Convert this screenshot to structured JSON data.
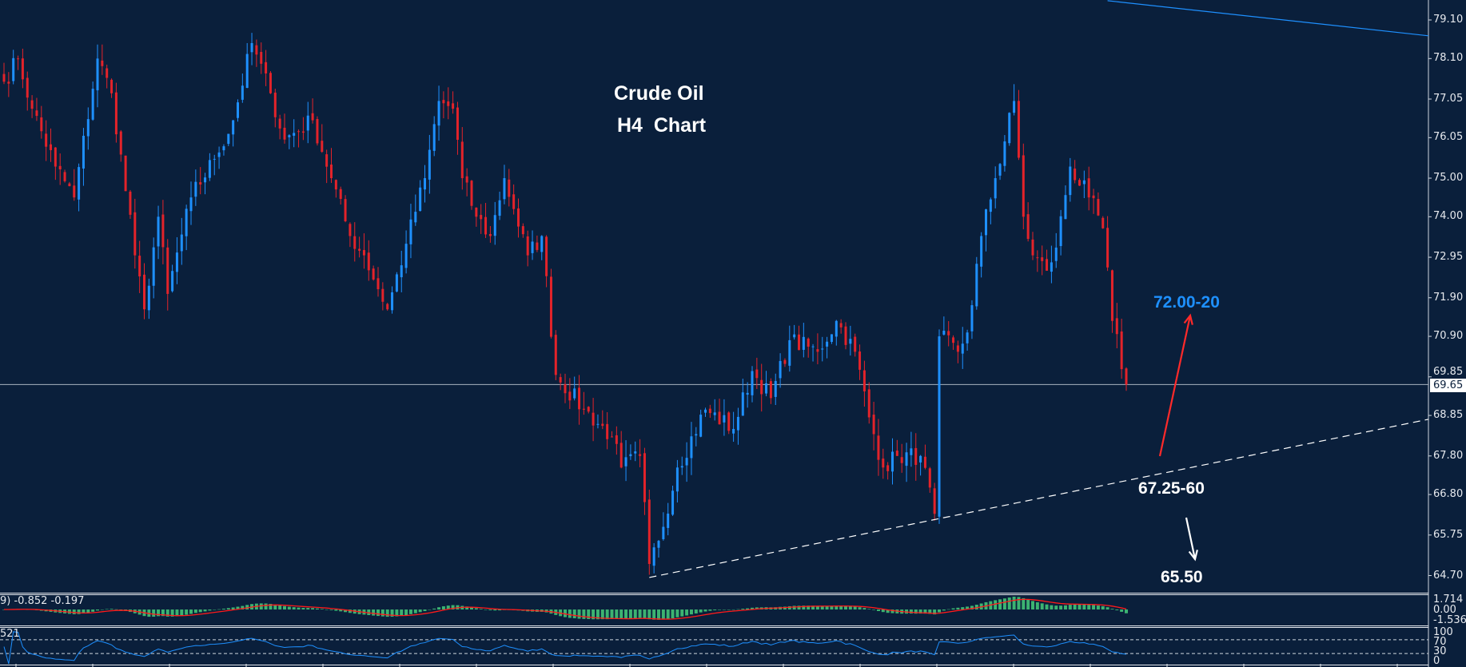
{
  "chart_data": {
    "type": "candlestick",
    "title": "Crude Oil",
    "subtitle": "H4  Chart",
    "timeframe": "H4",
    "y_ticks": [
      "79.10",
      "78.10",
      "77.05",
      "76.05",
      "75.00",
      "74.00",
      "72.95",
      "71.90",
      "70.90",
      "69.85",
      "68.85",
      "67.80",
      "66.80",
      "65.75",
      "64.70"
    ],
    "ylim": [
      64.2,
      79.6
    ],
    "current_price": "69.65",
    "close_path": [
      [
        0,
        77.5
      ],
      [
        3,
        78.1
      ],
      [
        6,
        76.8
      ],
      [
        11,
        75.3
      ],
      [
        15,
        74.5
      ],
      [
        20,
        78.1
      ],
      [
        23,
        77.2
      ],
      [
        28,
        73.0
      ],
      [
        30,
        71.6
      ],
      [
        33,
        74.0
      ],
      [
        35,
        72.0
      ],
      [
        40,
        74.5
      ],
      [
        45,
        75.5
      ],
      [
        49,
        76.5
      ],
      [
        53,
        78.5
      ],
      [
        57,
        77.2
      ],
      [
        60,
        76.0
      ],
      [
        66,
        76.5
      ],
      [
        70,
        75.0
      ],
      [
        74,
        73.5
      ],
      [
        77,
        73.0
      ],
      [
        82,
        71.6
      ],
      [
        86,
        73.3
      ],
      [
        90,
        75.0
      ],
      [
        93,
        77.0
      ],
      [
        96,
        76.8
      ],
      [
        98,
        75.0
      ],
      [
        101,
        74.0
      ],
      [
        104,
        73.5
      ],
      [
        107,
        75.0
      ],
      [
        109,
        74.2
      ],
      [
        112,
        73.0
      ],
      [
        115,
        73.5
      ],
      [
        118,
        69.9
      ],
      [
        124,
        69.0
      ],
      [
        130,
        68.3
      ],
      [
        132,
        67.5
      ],
      [
        136,
        67.8
      ],
      [
        138,
        65.0
      ],
      [
        140,
        65.6
      ],
      [
        144,
        67.5
      ],
      [
        150,
        69.0
      ],
      [
        156,
        68.5
      ],
      [
        160,
        70.0
      ],
      [
        164,
        69.3
      ],
      [
        168,
        70.8
      ],
      [
        174,
        70.5
      ],
      [
        178,
        71.3
      ],
      [
        182,
        70.5
      ],
      [
        185,
        68.8
      ],
      [
        188,
        67.5
      ],
      [
        191,
        67.8
      ],
      [
        196,
        67.8
      ],
      [
        199,
        66.3
      ],
      [
        200,
        70.9
      ],
      [
        204,
        70.5
      ],
      [
        206,
        71.0
      ],
      [
        209,
        73.5
      ],
      [
        212,
        75.0
      ],
      [
        216,
        77.0
      ],
      [
        218,
        74.0
      ],
      [
        220,
        73.0
      ],
      [
        223,
        72.6
      ],
      [
        225,
        73.2
      ],
      [
        228,
        75.3
      ],
      [
        232,
        74.5
      ],
      [
        235,
        73.7
      ],
      [
        237,
        71.3
      ],
      [
        240,
        69.65
      ]
    ],
    "trendlines": [
      {
        "style": "dashed",
        "color": "#ffffff",
        "from": [
          138,
          64.65
        ],
        "to": "axis",
        "at_axis": 68.75
      },
      {
        "style": "solid",
        "color": "#1e90ff",
        "from": [
          236,
          79.6
        ],
        "to": "axis",
        "at_axis": 78.69
      }
    ],
    "annotations": [
      {
        "text": "72.00-20",
        "color": "#1e90ff"
      },
      {
        "text": "67.25-60",
        "color": "#ffffff"
      },
      {
        "text": "65.50",
        "color": "#ffffff"
      }
    ],
    "colors": {
      "background": "#0a1f3b",
      "bull": "#1e90ff",
      "bear": "#e3232a",
      "macd_hist": "#3cb371",
      "macd_signal": "#ff1a1a",
      "rsi": "#1e90ff"
    },
    "macd": {
      "label": "9) -0.852 -0.197",
      "ticks": [
        "1.714",
        "0.00",
        "-1.536"
      ]
    },
    "rsi": {
      "label": "521",
      "ticks": [
        "100",
        "70",
        "30",
        "0"
      ],
      "levels": [
        70,
        30
      ]
    }
  }
}
